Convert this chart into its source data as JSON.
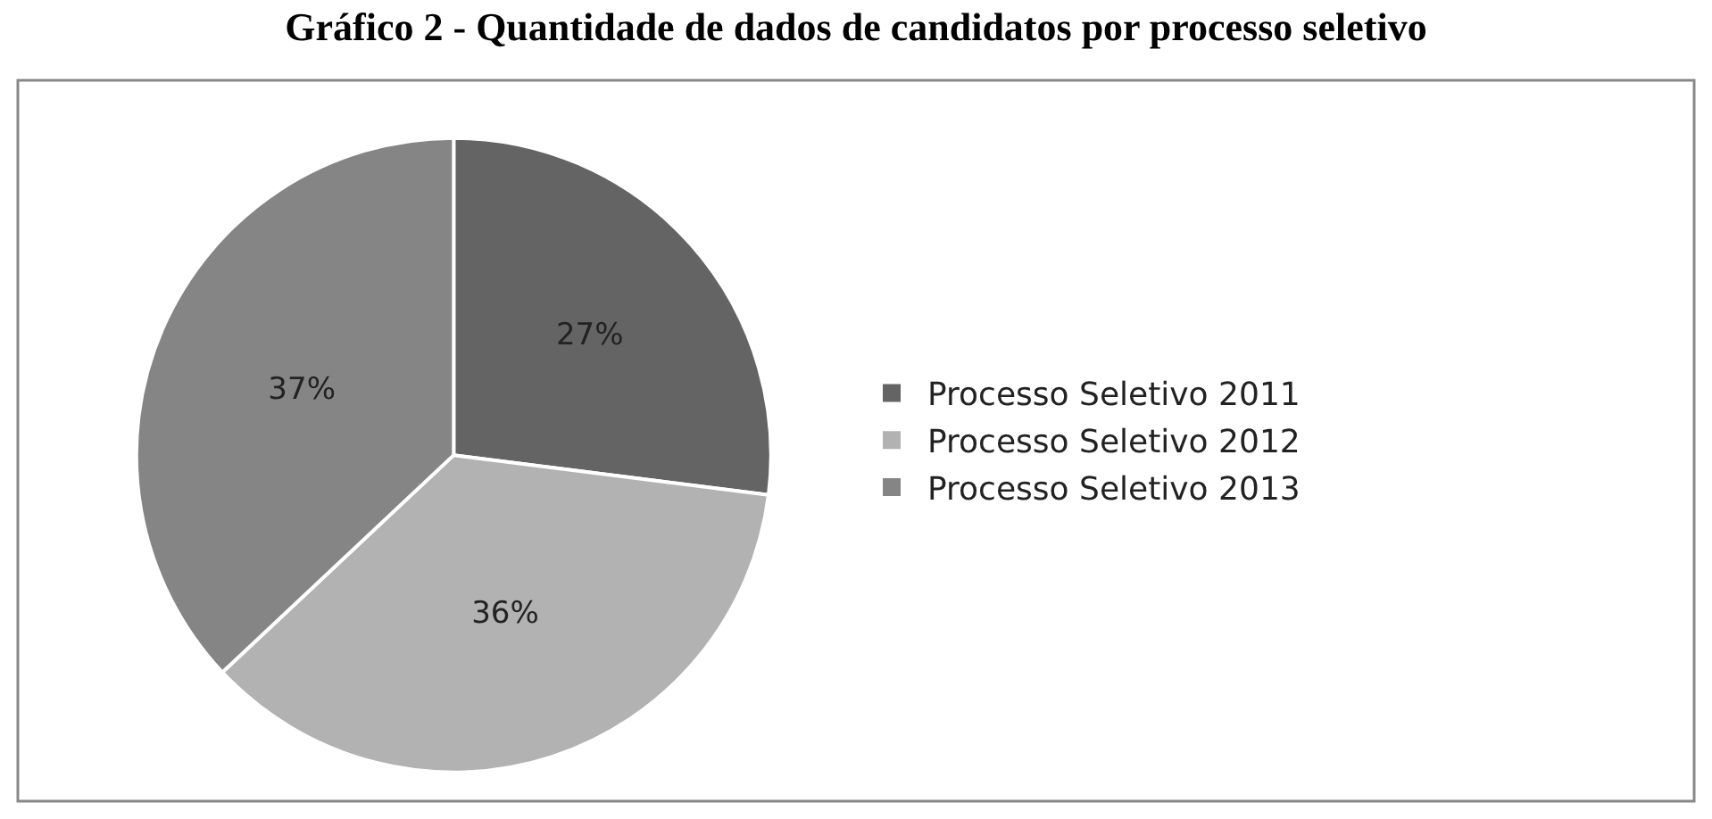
{
  "chart_data": {
    "type": "pie",
    "title": "Gráfico 2 - Quantidade de dados de candidatos por processo seletivo",
    "categories": [
      "Processo Seletivo 2011",
      "Processo Seletivo 2012",
      "Processo Seletivo 2013"
    ],
    "values": [
      27,
      36,
      37
    ],
    "colors": [
      "#646464",
      "#b2b2b2",
      "#858585"
    ],
    "value_labels": [
      "27%",
      "36%",
      "37%"
    ],
    "legend": "right"
  }
}
